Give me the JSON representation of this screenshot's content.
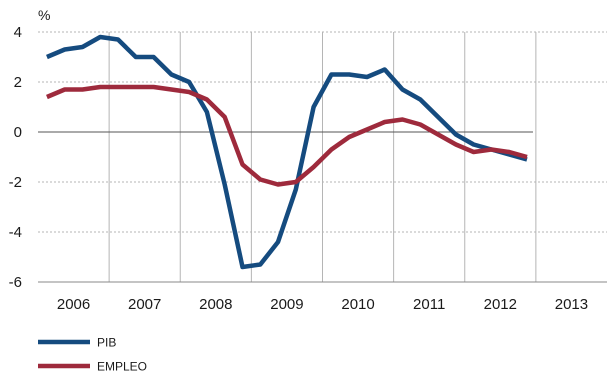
{
  "chart_data": {
    "type": "line",
    "ylabel": "%",
    "ylim": [
      -6,
      4
    ],
    "yticks": [
      4,
      2,
      0,
      -2,
      -4,
      -6
    ],
    "xlim": [
      2005.5,
      2013.5
    ],
    "xticks": [
      "2006",
      "2007",
      "2008",
      "2009",
      "2010",
      "2011",
      "2012",
      "2013"
    ],
    "grid": true,
    "legend_position": "bottom-left",
    "x": [
      2005.625,
      2005.875,
      2006.125,
      2006.375,
      2006.625,
      2006.875,
      2007.125,
      2007.375,
      2007.625,
      2007.875,
      2008.125,
      2008.375,
      2008.625,
      2008.875,
      2009.125,
      2009.375,
      2009.625,
      2009.875,
      2010.125,
      2010.375,
      2010.625,
      2010.875,
      2011.125,
      2011.375,
      2011.625,
      2011.875,
      2012.125,
      2012.375
    ],
    "series": [
      {
        "name": "PIB",
        "color": "#154b7f",
        "values": [
          3.0,
          3.3,
          3.4,
          3.8,
          3.7,
          3.0,
          3.0,
          2.3,
          2.0,
          0.8,
          -2.1,
          -5.4,
          -5.3,
          -4.4,
          -2.3,
          1.0,
          2.3,
          2.3,
          2.2,
          2.5,
          1.7,
          1.3,
          0.6,
          -0.1,
          -0.5,
          -0.7,
          -0.9,
          -1.1
        ]
      },
      {
        "name": "EMPLEO",
        "color": "#9e2a3c",
        "values": [
          1.4,
          1.7,
          1.7,
          1.8,
          1.8,
          1.8,
          1.8,
          1.7,
          1.6,
          1.3,
          0.6,
          -1.3,
          -1.9,
          -2.1,
          -2.0,
          -1.4,
          -0.7,
          -0.2,
          0.1,
          0.4,
          0.5,
          0.3,
          -0.1,
          -0.5,
          -0.8,
          -0.7,
          -0.8,
          -1.0
        ]
      }
    ]
  }
}
